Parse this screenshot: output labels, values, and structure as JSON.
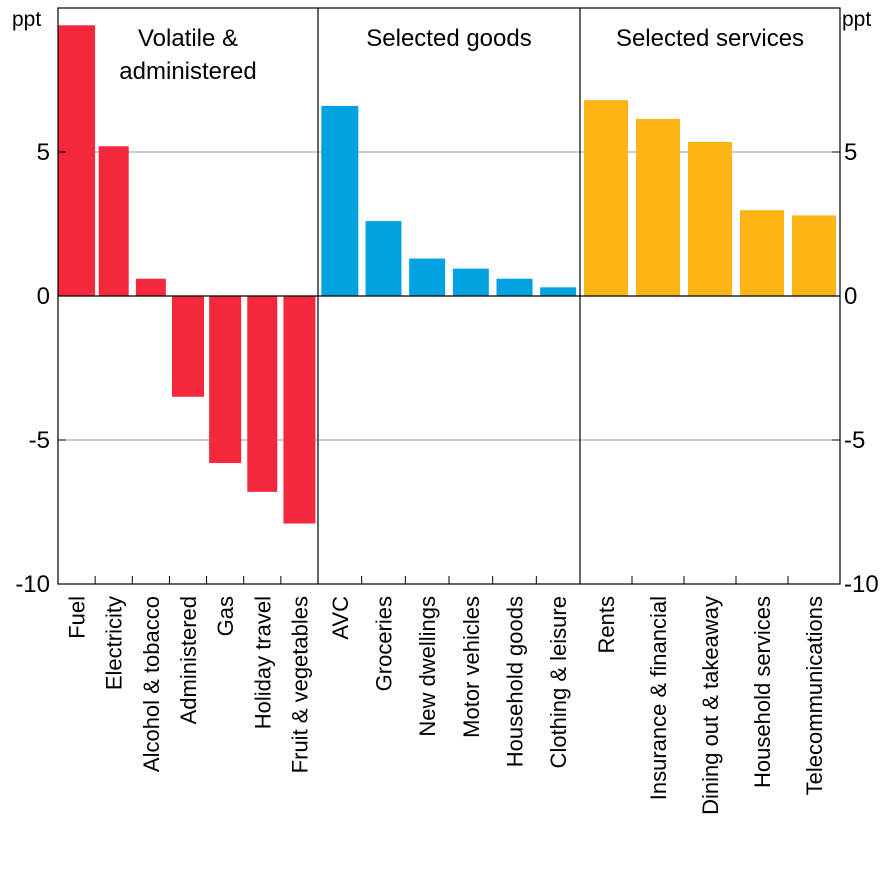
{
  "chart_data": {
    "type": "bar",
    "unit_left": "ppt",
    "unit_right": "ppt",
    "ylim": [
      -10,
      10
    ],
    "yticks": [
      -10,
      -5,
      0,
      5
    ],
    "ytick_labels": [
      "-10",
      "-5",
      "0",
      "5"
    ],
    "grid": true,
    "panels": [
      {
        "title": [
          "Volatile &",
          "administered"
        ],
        "color": "#F4283C",
        "categories": [
          "Fuel",
          "Electricity",
          "Alcohol & tobacco",
          "Administered",
          "Gas",
          "Holiday travel",
          "Fruit & vegetables"
        ],
        "values": [
          9.4,
          5.2,
          0.6,
          -3.5,
          -5.8,
          -6.8,
          -7.9
        ]
      },
      {
        "title": [
          "Selected goods"
        ],
        "color": "#00A2E0",
        "categories": [
          "AVC",
          "Groceries",
          "New dwellings",
          "Motor vehicles",
          "Household goods",
          "Clothing & leisure"
        ],
        "values": [
          6.6,
          2.6,
          1.3,
          0.95,
          0.6,
          0.3
        ]
      },
      {
        "title": [
          "Selected services"
        ],
        "color": "#FDB515",
        "categories": [
          "Rents",
          "Insurance & financial",
          "Dining out & takeaway",
          "Household services",
          "Telecommunications"
        ],
        "values": [
          6.8,
          6.15,
          5.35,
          2.98,
          2.8
        ]
      }
    ]
  }
}
